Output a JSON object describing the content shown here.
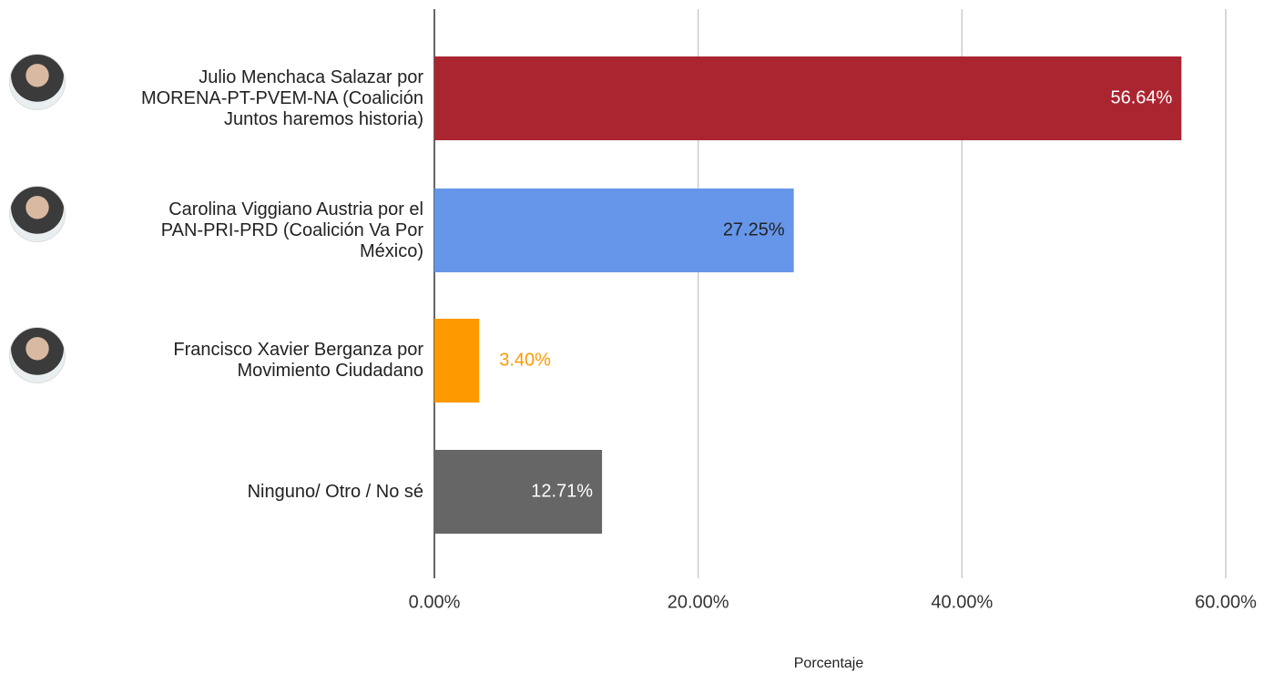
{
  "chart_data": {
    "type": "barh",
    "categories": [
      "Julio Menchaca Salazar por MORENA-PT-PVEM-NA (Coalición Juntos haremos historia)",
      "Carolina Viggiano Austria por el PAN-PRI-PRD (Coalición Va Por México)",
      "Francisco Xavier Berganza por Movimiento Ciudadano",
      "Ninguno/ Otro / No sé"
    ],
    "values": [
      56.64,
      27.25,
      3.4,
      12.71
    ],
    "value_labels": [
      "56.64%",
      "27.25%",
      "3.40%",
      "12.71%"
    ],
    "colors": [
      "#ab2530",
      "#6596e9",
      "#fe9900",
      "#666666"
    ],
    "xlim": [
      0,
      60
    ],
    "xticks": [
      {
        "value": 0,
        "label": "0.00%"
      },
      {
        "value": 20,
        "label": "20.00%"
      },
      {
        "value": 40,
        "label": "40.00%"
      },
      {
        "value": 60,
        "label": "60.00%"
      }
    ],
    "xlabel": "Porcentaje",
    "grid": true
  }
}
